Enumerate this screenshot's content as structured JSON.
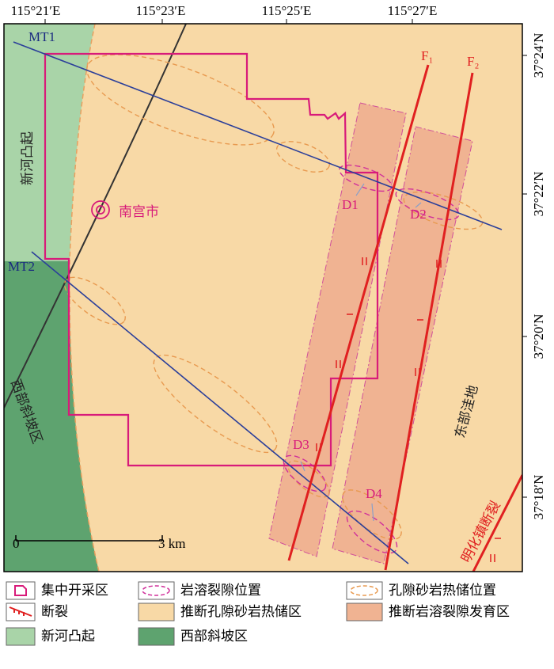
{
  "map": {
    "longitudes": [
      "115°21′E",
      "115°23′E",
      "115°25′E",
      "115°27′E"
    ],
    "latitudes": [
      "37°24′N",
      "37°22′N",
      "37°20′N",
      "37°18′N"
    ],
    "profiles": [
      "MT1",
      "MT2"
    ],
    "faults": [
      "F₁",
      "F₂",
      "明化镇断裂"
    ],
    "city": "南宫市",
    "regions": [
      "新河凸起",
      "西部斜坡区",
      "东部洼地"
    ],
    "karst_points": [
      "D1",
      "D2",
      "D3",
      "D4"
    ],
    "scale": {
      "zero": "0",
      "length": "3 km"
    }
  },
  "legend": [
    "集中开采区",
    "岩溶裂隙位置",
    "孔隙砂岩热储位置",
    "断裂",
    "推断孔隙砂岩热储区",
    "推断岩溶裂隙发育区",
    "新河凸起",
    "西部斜坡区"
  ]
}
